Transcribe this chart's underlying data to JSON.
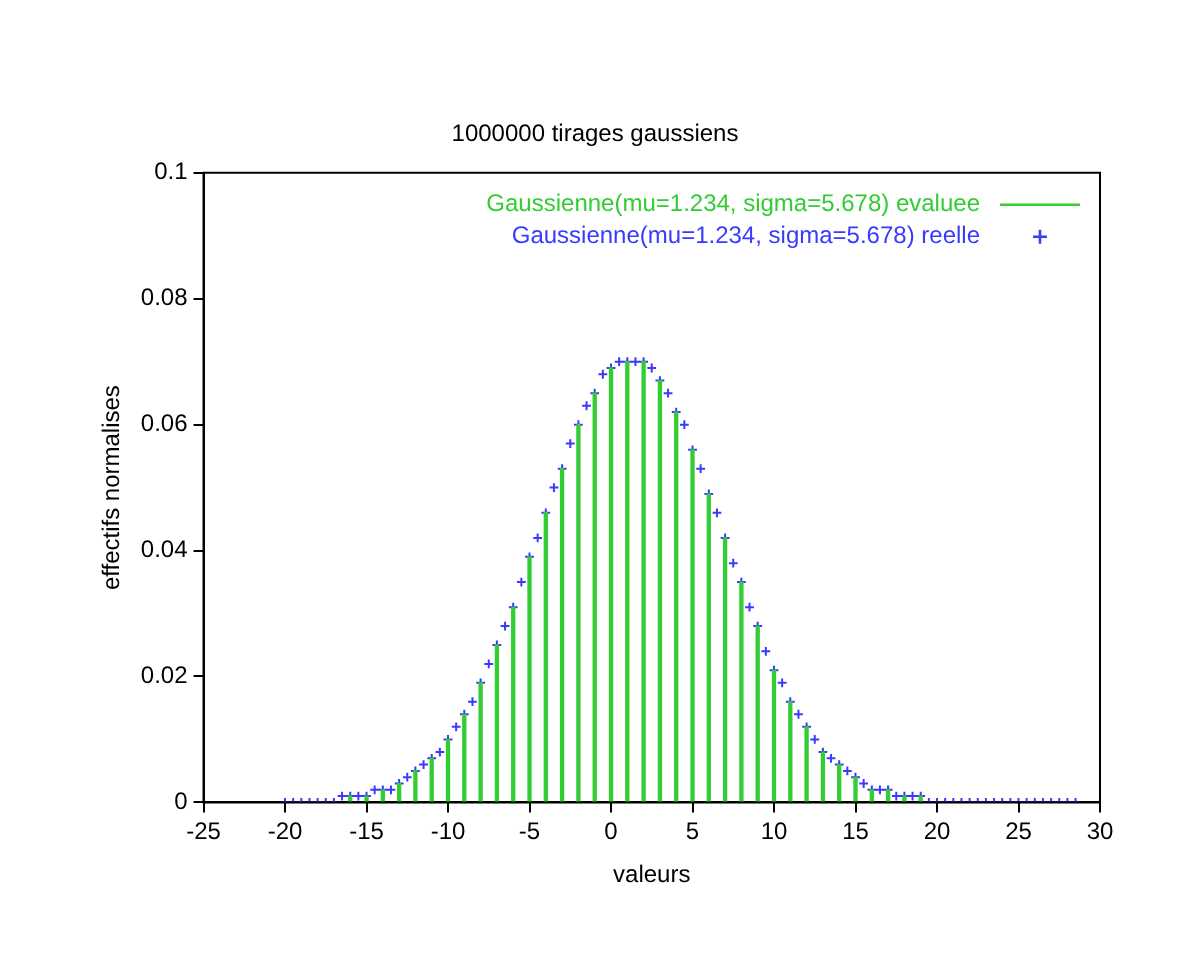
{
  "chart_data": {
    "type": "bar",
    "title": "1000000 tirages gaussiens",
    "xlabel": "valeurs",
    "ylabel": "effectifs normalises",
    "xlim": [
      -25,
      30
    ],
    "xticks": [
      -25,
      -20,
      -15,
      -10,
      -5,
      0,
      5,
      10,
      15,
      20,
      25,
      30
    ],
    "ylim": [
      0,
      0.1
    ],
    "yticks": [
      0,
      0.02,
      0.04,
      0.06,
      0.08,
      0.1
    ],
    "grid": false,
    "legend": "top right",
    "series": [
      {
        "name": "Gaussienne(mu=1.234, sigma=5.678) evaluee",
        "color": "#33cc33",
        "x": [
          -20,
          -19,
          -18,
          -17,
          -16,
          -15,
          -14,
          -13,
          -12,
          -11,
          -10,
          -9,
          -8,
          -7,
          -6,
          -5,
          -4,
          -3,
          -2,
          -1,
          0,
          1,
          2,
          3,
          4,
          5,
          6,
          7,
          8,
          9,
          10,
          11,
          12,
          13,
          14,
          15,
          16,
          17,
          18,
          19,
          20
        ],
        "values": [
          0,
          0,
          0,
          0,
          0.001,
          0.001,
          0.002,
          0.003,
          0.005,
          0.007,
          0.01,
          0.014,
          0.019,
          0.025,
          0.031,
          0.039,
          0.046,
          0.053,
          0.06,
          0.065,
          0.069,
          0.07,
          0.07,
          0.067,
          0.062,
          0.056,
          0.049,
          0.042,
          0.035,
          0.028,
          0.021,
          0.016,
          0.012,
          0.008,
          0.006,
          0.004,
          0.002,
          0.002,
          0.001,
          0.001,
          0
        ]
      },
      {
        "name": "Gaussienne(mu=1.234, sigma=5.678) reelle",
        "type": "scatter",
        "marker": "cross",
        "color": "#3a3aff",
        "x": [
          -20,
          -19.5,
          -19,
          -18.5,
          -18,
          -17.5,
          -17,
          -16.5,
          -16,
          -15.5,
          -15,
          -14.5,
          -14,
          -13.5,
          -13,
          -12.5,
          -12,
          -11.5,
          -11,
          -10.5,
          -10,
          -9.5,
          -9,
          -8.5,
          -8,
          -7.5,
          -7,
          -6.5,
          -6,
          -5.5,
          -5,
          -4.5,
          -4,
          -3.5,
          -3,
          -2.5,
          -2,
          -1.5,
          -1,
          -0.5,
          0,
          0.5,
          1,
          1.5,
          2,
          2.5,
          3,
          3.5,
          4,
          4.5,
          5,
          5.5,
          6,
          6.5,
          7,
          7.5,
          8,
          8.5,
          9,
          9.5,
          10,
          10.5,
          11,
          11.5,
          12,
          12.5,
          13,
          13.5,
          14,
          14.5,
          15,
          15.5,
          16,
          16.5,
          17,
          17.5,
          18,
          18.5,
          19,
          19.5,
          20,
          20.5,
          21,
          21.5,
          22,
          22.5,
          23,
          23.5,
          24,
          24.5,
          25,
          25.5,
          26,
          26.5,
          27,
          27.5,
          28,
          28.5
        ],
        "values": [
          0,
          0,
          0,
          0,
          0,
          0,
          0,
          0.001,
          0.001,
          0.001,
          0.001,
          0.002,
          0.002,
          0.002,
          0.003,
          0.004,
          0.005,
          0.006,
          0.007,
          0.008,
          0.01,
          0.012,
          0.014,
          0.016,
          0.019,
          0.022,
          0.025,
          0.028,
          0.031,
          0.035,
          0.039,
          0.042,
          0.046,
          0.05,
          0.053,
          0.057,
          0.06,
          0.063,
          0.065,
          0.068,
          0.069,
          0.07,
          0.07,
          0.07,
          0.07,
          0.069,
          0.067,
          0.065,
          0.062,
          0.06,
          0.056,
          0.053,
          0.049,
          0.046,
          0.042,
          0.038,
          0.035,
          0.031,
          0.028,
          0.024,
          0.021,
          0.019,
          0.016,
          0.014,
          0.012,
          0.01,
          0.008,
          0.007,
          0.006,
          0.005,
          0.004,
          0.003,
          0.002,
          0.002,
          0.002,
          0.001,
          0.001,
          0.001,
          0.001,
          0,
          0,
          0,
          0,
          0,
          0,
          0,
          0,
          0,
          0,
          0,
          0,
          0,
          0,
          0,
          0,
          0,
          0,
          0
        ]
      }
    ]
  }
}
